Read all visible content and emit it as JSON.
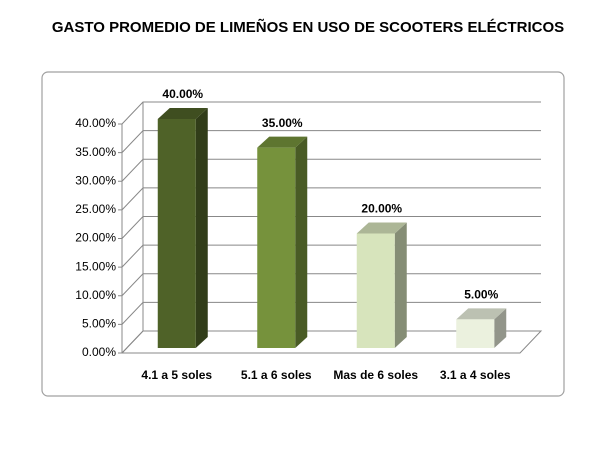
{
  "chart_data": {
    "type": "bar3d",
    "title": "GASTO PROMEDIO DE LIMEÑOS EN USO DE SCOOTERS ELÉCTRICOS",
    "categories": [
      "4.1 a 5 soles",
      "5.1 a 6 soles",
      "Mas de 6 soles",
      "3.1 a 4 soles"
    ],
    "values": [
      40,
      35,
      20,
      5
    ],
    "value_labels": [
      "40.00%",
      "35.00%",
      "20.00%",
      "5.00%"
    ],
    "colors": [
      "#4f6228",
      "#76923c",
      "#d7e4bc",
      "#ebf1de"
    ],
    "ylim": [
      0,
      40
    ],
    "yticks": [
      {
        "value": 0,
        "label": "0.00%"
      },
      {
        "value": 5,
        "label": "5.00%"
      },
      {
        "value": 10,
        "label": "10.00%"
      },
      {
        "value": 15,
        "label": "15.00%"
      },
      {
        "value": 20,
        "label": "20.00%"
      },
      {
        "value": 25,
        "label": "25.00%"
      },
      {
        "value": 30,
        "label": "30.00%"
      },
      {
        "value": 35,
        "label": "35.00%"
      },
      {
        "value": 40,
        "label": "40.00%"
      }
    ],
    "grid": true
  }
}
